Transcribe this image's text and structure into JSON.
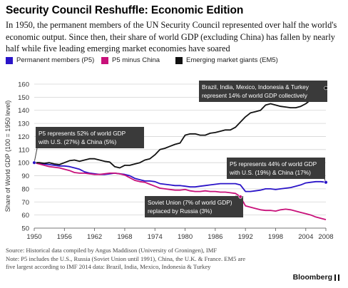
{
  "title": "Security Council Reshuffle: Economic Edition",
  "subtitle": "In 1950, the permanent members of the UN Security Council represented over half the world's economic output. Since then, their share of world GDP (excluding China) has fallen by nearly half while five leading emerging market economies have soared",
  "legend": [
    {
      "label": "Permanent members (P5)",
      "color": "#2a14c8"
    },
    {
      "label": "P5 minus China",
      "color": "#c8117a"
    },
    {
      "label": "Emerging market giants (EM5)",
      "color": "#111111"
    }
  ],
  "footer": {
    "source": "Source: Historical data compiled by Angus Maddison (University of Groningen), IMF",
    "note1": "Note: P5 includes the U.S., Russia (Soviet Union until 1991), China, the U.K. & France. EM5 are",
    "note2": "five largest according to IMF 2014 data: Brazil, India, Mexico, Indonesia & Turkey"
  },
  "brand": "Bloomberg",
  "chart_data": {
    "type": "line",
    "ylabel": "Share of World GDP (100 = 1950 level)",
    "xlabel": "",
    "xlim": [
      1950,
      2008
    ],
    "ylim": [
      50,
      160
    ],
    "xticks": [
      1950,
      1956,
      1962,
      1968,
      1974,
      1980,
      1986,
      1992,
      1998,
      2004,
      2008
    ],
    "yticks": [
      50,
      60,
      70,
      80,
      90,
      100,
      110,
      120,
      130,
      140,
      150,
      160
    ],
    "grid": true,
    "legend_position": "top",
    "series": [
      {
        "name": "Permanent members (P5)",
        "color": "#2a14c8",
        "x": [
          1950,
          1951,
          1952,
          1953,
          1954,
          1955,
          1956,
          1957,
          1958,
          1959,
          1960,
          1961,
          1962,
          1963,
          1964,
          1965,
          1966,
          1967,
          1968,
          1969,
          1970,
          1971,
          1972,
          1973,
          1974,
          1975,
          1976,
          1977,
          1978,
          1979,
          1980,
          1981,
          1982,
          1983,
          1984,
          1985,
          1986,
          1987,
          1988,
          1989,
          1990,
          1991,
          1992,
          1993,
          1994,
          1995,
          1996,
          1997,
          1998,
          1999,
          2000,
          2001,
          2002,
          2003,
          2004,
          2005,
          2006,
          2007,
          2008
        ],
        "values": [
          100,
          99.5,
          99,
          98.5,
          98,
          97.5,
          97.5,
          97,
          96,
          95,
          93,
          92,
          91.5,
          91,
          91,
          91.5,
          92,
          91.5,
          91,
          90,
          88,
          87,
          86,
          86,
          85.5,
          84,
          83.5,
          83,
          82.5,
          82.5,
          82,
          81.5,
          81.5,
          82,
          82.5,
          83,
          83.5,
          84,
          84,
          84,
          84,
          83,
          78,
          78,
          78.5,
          79,
          80,
          80,
          79.5,
          80,
          80.5,
          81,
          82,
          83,
          84.5,
          85,
          85.5,
          85.5,
          85
        ]
      },
      {
        "name": "P5 minus China",
        "color": "#c8117a",
        "x": [
          1950,
          1951,
          1952,
          1953,
          1954,
          1955,
          1956,
          1957,
          1958,
          1959,
          1960,
          1961,
          1962,
          1963,
          1964,
          1965,
          1966,
          1967,
          1968,
          1969,
          1970,
          1971,
          1972,
          1973,
          1974,
          1975,
          1976,
          1977,
          1978,
          1979,
          1980,
          1981,
          1982,
          1983,
          1984,
          1985,
          1986,
          1987,
          1988,
          1989,
          1990,
          1991,
          1992,
          1993,
          1994,
          1995,
          1996,
          1997,
          1998,
          1999,
          2000,
          2001,
          2002,
          2003,
          2004,
          2005,
          2006,
          2007,
          2008
        ],
        "values": [
          100,
          99,
          98,
          97,
          96.5,
          96,
          95,
          94,
          92.5,
          92,
          92,
          91.5,
          91,
          91,
          91.5,
          92,
          92,
          91.5,
          90.5,
          88.5,
          86.5,
          85.5,
          85,
          83.5,
          82,
          80.5,
          80,
          79.5,
          79,
          79,
          79.5,
          78.5,
          78,
          78,
          78.5,
          78,
          78,
          77.5,
          77.5,
          77,
          76.5,
          74,
          67,
          66,
          65,
          64,
          63.5,
          63.5,
          63,
          64,
          64.5,
          64,
          63,
          62,
          61,
          60,
          58.5,
          57.5,
          56.5
        ]
      },
      {
        "name": "Emerging market giants (EM5)",
        "color": "#111111",
        "x": [
          1950,
          1951,
          1952,
          1953,
          1954,
          1955,
          1956,
          1957,
          1958,
          1959,
          1960,
          1961,
          1962,
          1963,
          1964,
          1965,
          1966,
          1967,
          1968,
          1969,
          1970,
          1971,
          1972,
          1973,
          1974,
          1975,
          1976,
          1977,
          1978,
          1979,
          1980,
          1981,
          1982,
          1983,
          1984,
          1985,
          1986,
          1987,
          1988,
          1989,
          1990,
          1991,
          1992,
          1993,
          1994,
          1995,
          1996,
          1997,
          1998,
          1999,
          2000,
          2001,
          2002,
          2003,
          2004,
          2005,
          2006,
          2007,
          2008
        ],
        "values": [
          100,
          100,
          99.5,
          100,
          99,
          98.5,
          100,
          101.5,
          102,
          101,
          102,
          103,
          103,
          102,
          101,
          100.5,
          97,
          96,
          98,
          98,
          99,
          100,
          102,
          103,
          106,
          110,
          111,
          112.5,
          114,
          115,
          121,
          122,
          122,
          121,
          121,
          122.5,
          123,
          124,
          125,
          125,
          127,
          131,
          135,
          138,
          139,
          140,
          144,
          145,
          144,
          143,
          142.5,
          142,
          142,
          143,
          145,
          148,
          151,
          154,
          157
        ]
      }
    ],
    "annotations": [
      {
        "text1": "P5 represents 52% of world GDP",
        "text2": "with U.S. (27%) & China (5%)",
        "x": 1950,
        "y": 100,
        "series": 0
      },
      {
        "text1": "P5 represents 44% of world GDP",
        "text2": "with U.S. (19%) & China (17%)",
        "x": 2008,
        "y": 85,
        "series": 0
      },
      {
        "text1": "Brazil, India, Mexico, Indonesia & Turkey",
        "text2": "represent 14% of world GDP collectively",
        "x": 2008,
        "y": 157,
        "series": 2
      },
      {
        "text1": "Soviet Union (7% of world GDP)",
        "text2": "replaced by Russia (3%)",
        "x": 1991,
        "y": 74,
        "series": 1
      }
    ]
  }
}
